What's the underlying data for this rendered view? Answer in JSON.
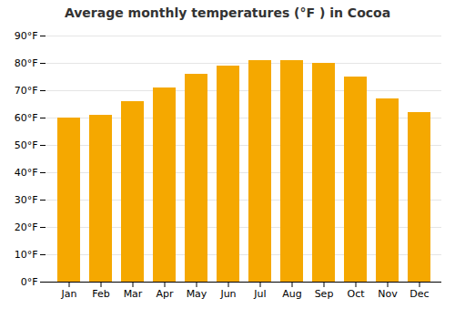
{
  "chart_data": {
    "type": "bar",
    "title": "Average monthly temperatures (°F ) in Cocoa",
    "categories": [
      "Jan",
      "Feb",
      "Mar",
      "Apr",
      "May",
      "Jun",
      "Jul",
      "Aug",
      "Sep",
      "Oct",
      "Nov",
      "Dec"
    ],
    "values": [
      60,
      61,
      66,
      71,
      76,
      79,
      81,
      81,
      80,
      75,
      67,
      62
    ],
    "color": "#F5A800",
    "ylim": [
      0,
      90
    ],
    "yticks": [
      {
        "value": 0,
        "label": "0°F"
      },
      {
        "value": 10,
        "label": "10°F"
      },
      {
        "value": 20,
        "label": "20°F"
      },
      {
        "value": 30,
        "label": "30°F"
      },
      {
        "value": 40,
        "label": "40°F"
      },
      {
        "value": 50,
        "label": "50°F"
      },
      {
        "value": 60,
        "label": "60°F"
      },
      {
        "value": 70,
        "label": "70°F"
      },
      {
        "value": 80,
        "label": "80°F"
      },
      {
        "value": 90,
        "label": "90°F"
      }
    ],
    "grid": true
  }
}
